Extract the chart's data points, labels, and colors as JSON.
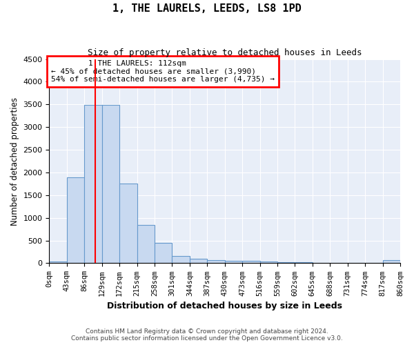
{
  "title": "1, THE LAURELS, LEEDS, LS8 1PD",
  "subtitle": "Size of property relative to detached houses in Leeds",
  "xlabel": "Distribution of detached houses by size in Leeds",
  "ylabel": "Number of detached properties",
  "annotation_line1": "1 THE LAURELS: 112sqm",
  "annotation_line2": "← 45% of detached houses are smaller (3,990)",
  "annotation_line3": "54% of semi-detached houses are larger (4,735) →",
  "property_size_sqm": 112,
  "bin_edges": [
    0,
    43,
    86,
    129,
    172,
    215,
    258,
    301,
    344,
    387,
    430,
    473,
    516,
    559,
    602,
    645,
    688,
    731,
    774,
    817,
    860
  ],
  "bin_counts": [
    30,
    1900,
    3490,
    3490,
    1760,
    840,
    450,
    160,
    100,
    70,
    55,
    45,
    35,
    25,
    18,
    12,
    8,
    6,
    4,
    60
  ],
  "bar_color": "#c8d9f0",
  "bar_edge_color": "#6699cc",
  "vline_color": "red",
  "vline_x": 112,
  "ylim": [
    0,
    4500
  ],
  "yticks": [
    0,
    500,
    1000,
    1500,
    2000,
    2500,
    3000,
    3500,
    4000,
    4500
  ],
  "background_color": "#e8eef8",
  "grid_color": "white",
  "footer_line1": "Contains HM Land Registry data © Crown copyright and database right 2024.",
  "footer_line2": "Contains public sector information licensed under the Open Government Licence v3.0."
}
